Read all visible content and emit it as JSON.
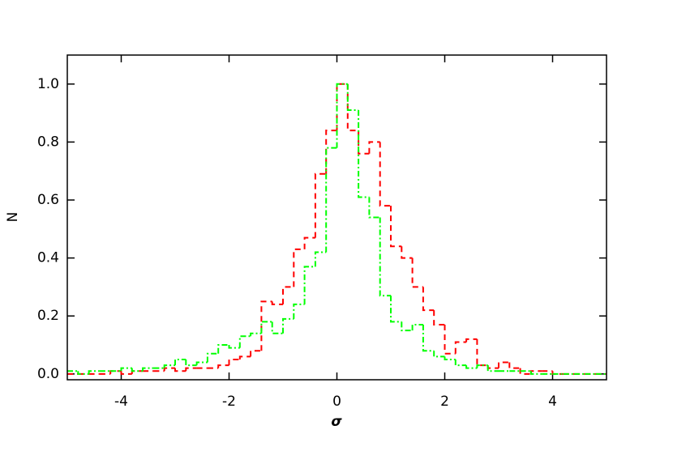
{
  "chart_data": {
    "type": "histogram",
    "x_label": "σ",
    "y_label": "N",
    "bins": [
      -5.0,
      -4.8,
      -4.6,
      -4.4,
      -4.2,
      -4.0,
      -3.8,
      -3.6,
      -3.4,
      -3.2,
      -3.0,
      -2.8,
      -2.6,
      -2.4,
      -2.2,
      -2.0,
      -1.8,
      -1.6,
      -1.4,
      -1.2,
      -1.0,
      -0.8,
      -0.6,
      -0.4,
      -0.2,
      0.0,
      0.2,
      0.4,
      0.6,
      0.8,
      1.0,
      1.2,
      1.4,
      1.6,
      1.8,
      2.0,
      2.2,
      2.4,
      2.6,
      2.8,
      3.0,
      3.2,
      3.4,
      3.6,
      3.8,
      4.0,
      4.2,
      4.4,
      4.6,
      4.8,
      5.0
    ],
    "series": [
      {
        "color": "#ff0000",
        "dash": "7,5",
        "values": [
          0.0,
          0.0,
          0.0,
          0.0,
          0.01,
          0.0,
          0.01,
          0.01,
          0.01,
          0.02,
          0.01,
          0.02,
          0.02,
          0.02,
          0.03,
          0.05,
          0.06,
          0.08,
          0.25,
          0.24,
          0.3,
          0.43,
          0.47,
          0.69,
          0.84,
          1.0,
          0.84,
          0.76,
          0.8,
          0.58,
          0.44,
          0.4,
          0.3,
          0.22,
          0.17,
          0.07,
          0.11,
          0.12,
          0.03,
          0.02,
          0.04,
          0.02,
          0.0,
          0.01,
          0.01,
          0.0,
          0.0,
          0.0,
          0.0,
          0.0
        ]
      },
      {
        "color": "#00ff00",
        "dash": "7,3,2,3",
        "values": [
          0.01,
          0.0,
          0.01,
          0.01,
          0.01,
          0.02,
          0.01,
          0.02,
          0.02,
          0.03,
          0.05,
          0.03,
          0.04,
          0.07,
          0.1,
          0.09,
          0.13,
          0.14,
          0.18,
          0.14,
          0.19,
          0.24,
          0.37,
          0.42,
          0.78,
          1.0,
          0.91,
          0.61,
          0.54,
          0.27,
          0.18,
          0.15,
          0.17,
          0.08,
          0.06,
          0.05,
          0.03,
          0.02,
          0.03,
          0.01,
          0.01,
          0.01,
          0.01,
          0.0,
          0.0,
          0.0,
          0.0,
          0.0,
          0.0,
          0.0
        ]
      }
    ],
    "xlim": [
      -5,
      5
    ],
    "ylim": [
      -0.02,
      1.1
    ],
    "xticks": [
      -4,
      -2,
      0,
      2,
      4
    ],
    "yticks": [
      {
        "value": 0,
        "label": "0.0"
      },
      0.2,
      0.4,
      0.6,
      0.8,
      {
        "value": 1,
        "label": "1.0"
      }
    ]
  }
}
